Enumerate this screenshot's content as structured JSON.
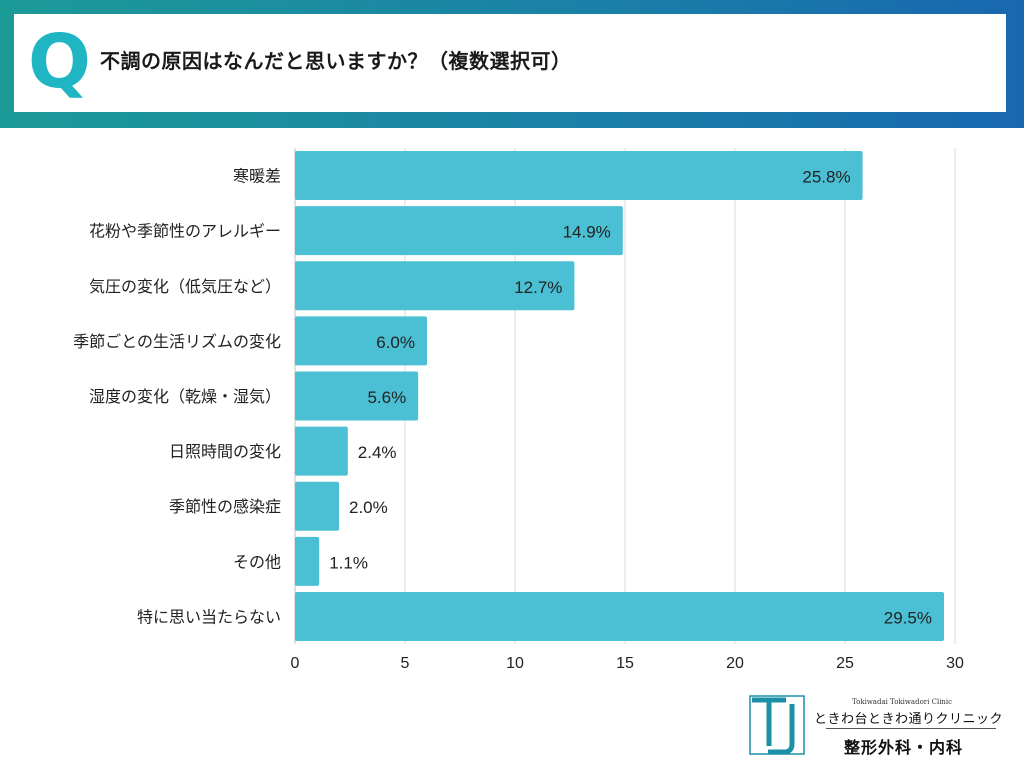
{
  "header": {
    "q_label": "Q",
    "question": "不調の原因はなんだと思いますか？（複数選択可）"
  },
  "chart_data": {
    "type": "bar",
    "orientation": "horizontal",
    "categories": [
      "寒暖差",
      "花粉や季節性のアレルギー",
      "気圧の変化（低気圧など）",
      "季節ごとの生活リズムの変化",
      "湿度の変化（乾燥・湿気）",
      "日照時間の変化",
      "季節性の感染症",
      "その他",
      "特に思い当たらない"
    ],
    "values": [
      25.8,
      14.9,
      12.7,
      6.0,
      5.6,
      2.4,
      2.0,
      1.1,
      29.5
    ],
    "value_labels": [
      "25.8%",
      "14.9%",
      "12.7%",
      "6.0%",
      "5.6%",
      "2.4%",
      "2.0%",
      "1.1%",
      "29.5%"
    ],
    "xticks": [
      "0",
      "5",
      "10",
      "15",
      "20",
      "25",
      "30"
    ],
    "xlim": [
      0,
      30
    ],
    "grid": true,
    "bar_color": "#4bbfd3",
    "title": "",
    "xlabel": "",
    "ylabel": ""
  },
  "logo": {
    "subtitle": "Tokiwadai Tokiwadori Clinic",
    "name": "ときわ台ときわ通りクリニック",
    "department": "整形外科・内科",
    "mark_color": "#1a8fa6"
  }
}
